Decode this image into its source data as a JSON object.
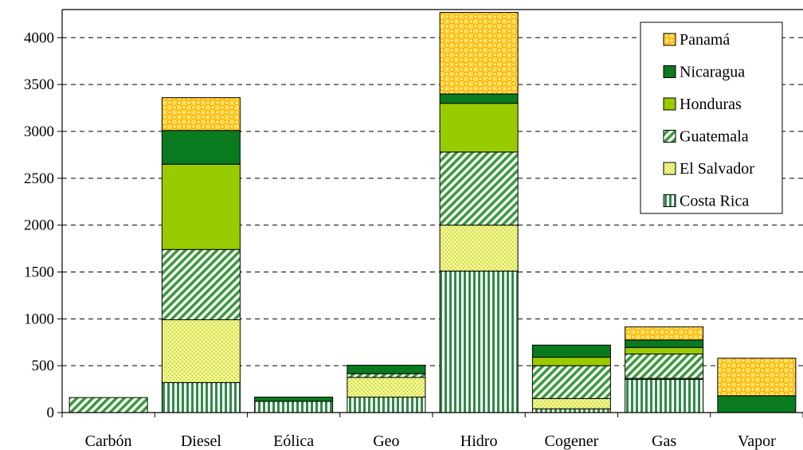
{
  "chart_data": {
    "type": "bar",
    "stacked": true,
    "categories": [
      "Carbón",
      "Diesel",
      "Eólica",
      "Geo",
      "Hidro",
      "Cogener",
      "Gas",
      "Vapor"
    ],
    "series": [
      {
        "name": "Costa Rica",
        "values": [
          0,
          320,
          120,
          165,
          1510,
          40,
          355,
          0
        ],
        "color": "#2e8b45",
        "pattern": "vertical-stripes"
      },
      {
        "name": "El Salvador",
        "values": [
          0,
          670,
          0,
          210,
          490,
          110,
          10,
          0
        ],
        "color": "#f0f58a",
        "pattern": "dots"
      },
      {
        "name": "Guatemala",
        "values": [
          160,
          750,
          0,
          40,
          780,
          350,
          260,
          0
        ],
        "color": "#3c9a3c",
        "pattern": "diagonal-stripes"
      },
      {
        "name": "Honduras",
        "values": [
          0,
          910,
          0,
          0,
          520,
          90,
          70,
          0
        ],
        "color": "#99cc00",
        "pattern": "solid"
      },
      {
        "name": "Nicaragua",
        "values": [
          0,
          360,
          45,
          90,
          100,
          130,
          80,
          180
        ],
        "color": "#0a7a1e",
        "pattern": "solid"
      },
      {
        "name": "Panamá",
        "values": [
          0,
          350,
          0,
          0,
          870,
          0,
          140,
          400
        ],
        "color": "#ffcc33",
        "pattern": "checker"
      }
    ],
    "legend_order": [
      "Panamá",
      "Nicaragua",
      "Honduras",
      "Guatemala",
      "El Salvador",
      "Costa Rica"
    ],
    "ylim": [
      0,
      4300
    ],
    "yticks": [
      0,
      500,
      1000,
      1500,
      2000,
      2500,
      3000,
      3500,
      4000
    ],
    "grid": "horizontal-dashed",
    "legend_position": "top-right",
    "title": "",
    "xlabel": "",
    "ylabel": ""
  }
}
